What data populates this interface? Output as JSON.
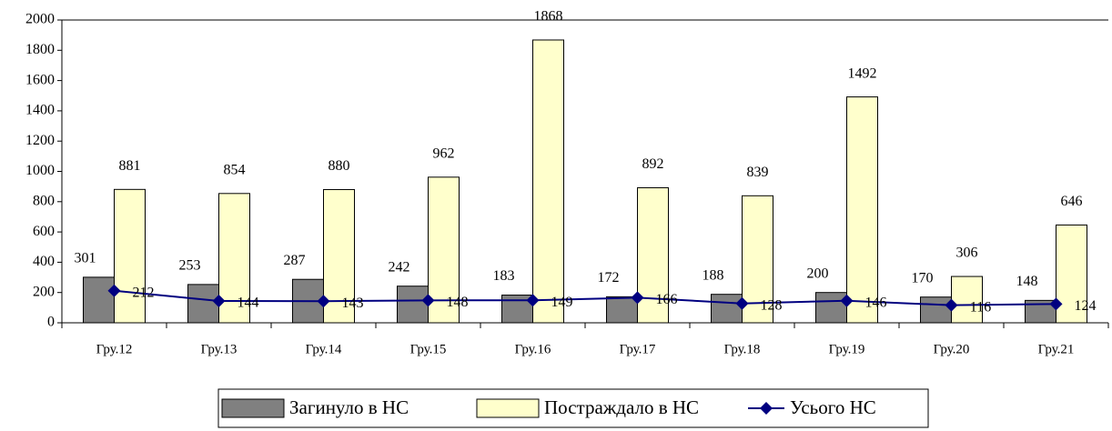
{
  "chart_data": {
    "type": "bar",
    "categories": [
      "Гру.12",
      "Гру.13",
      "Гру.14",
      "Гру.15",
      "Гру.16",
      "Гру.17",
      "Гру.18",
      "Гру.19",
      "Гру.20",
      "Гру.21"
    ],
    "series": [
      {
        "name": "Загинуло в НС",
        "type": "bar",
        "color": "#808080",
        "values": [
          301,
          253,
          287,
          242,
          183,
          172,
          188,
          200,
          170,
          148
        ]
      },
      {
        "name": "Постраждало в НС",
        "type": "bar",
        "color": "#ffffcc",
        "values": [
          881,
          854,
          880,
          962,
          1868,
          892,
          839,
          1492,
          306,
          646
        ]
      },
      {
        "name": "Усього НС",
        "type": "line",
        "color": "#000080",
        "values": [
          212,
          144,
          143,
          148,
          149,
          166,
          128,
          146,
          116,
          124
        ]
      }
    ],
    "ylim": [
      0,
      2000
    ],
    "yticks": [
      0,
      200,
      400,
      600,
      800,
      1000,
      1200,
      1400,
      1600,
      1800,
      2000
    ],
    "grid": false,
    "legend": "bottom"
  }
}
